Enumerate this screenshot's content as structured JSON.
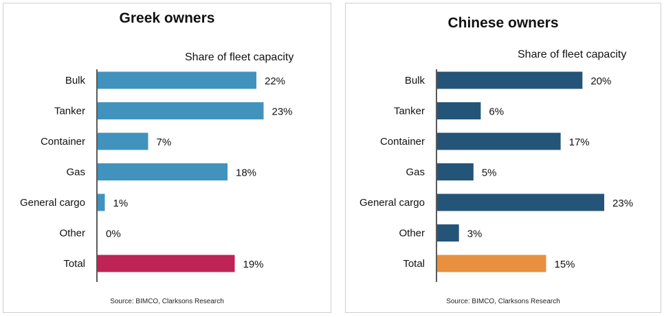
{
  "chart_data": [
    {
      "type": "bar",
      "orientation": "horizontal",
      "title": "Greek owners",
      "value_label": "Share of fleet capacity",
      "categories": [
        "Bulk",
        "Tanker",
        "Container",
        "Gas",
        "General cargo",
        "Other",
        "Total"
      ],
      "values": [
        22,
        23,
        7,
        18,
        1,
        0,
        19
      ],
      "data_labels": [
        "22%",
        "23%",
        "7%",
        "18%",
        "1%",
        "0%",
        "19%"
      ],
      "unit": "%",
      "xlim": [
        0,
        30
      ],
      "grid": false,
      "legend": "none",
      "bar_color": "#4193BE",
      "total_color": "#BE2455",
      "source": "Source: BIMCO, Clarksons Research"
    },
    {
      "type": "bar",
      "orientation": "horizontal",
      "title": "Chinese owners",
      "value_label": "Share of fleet capacity",
      "categories": [
        "Bulk",
        "Tanker",
        "Container",
        "Gas",
        "General cargo",
        "Other",
        "Total"
      ],
      "values": [
        20,
        6,
        17,
        5,
        23,
        3,
        15
      ],
      "data_labels": [
        "20%",
        "6%",
        "17%",
        "5%",
        "23%",
        "3%",
        "15%"
      ],
      "unit": "%",
      "xlim": [
        0,
        30
      ],
      "grid": false,
      "legend": "none",
      "bar_color": "#255479",
      "total_color": "#E8903F",
      "source": "Source: BIMCO, Clarksons Research"
    }
  ]
}
